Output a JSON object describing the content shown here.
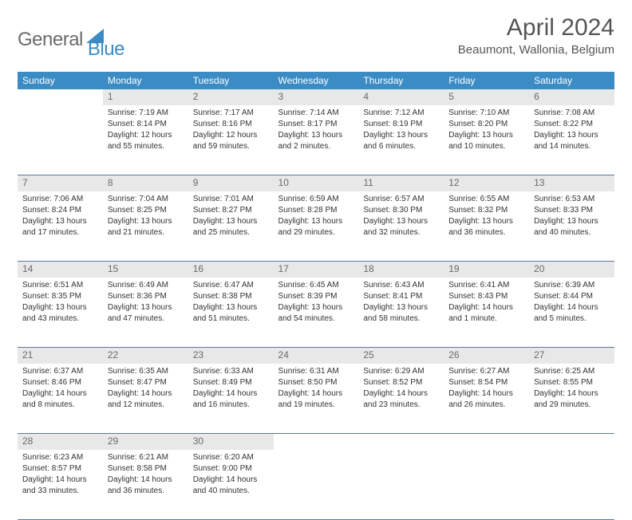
{
  "logo": {
    "text1": "General",
    "text2": "Blue"
  },
  "title": "April 2024",
  "location": "Beaumont, Wallonia, Belgium",
  "header_bg": "#3b8bc4",
  "daynum_bg": "#e8e8e8",
  "border_color": "#5a7a9a",
  "weekdays": [
    "Sunday",
    "Monday",
    "Tuesday",
    "Wednesday",
    "Thursday",
    "Friday",
    "Saturday"
  ],
  "weeks": [
    [
      null,
      {
        "day": "1",
        "sunrise": "Sunrise: 7:19 AM",
        "sunset": "Sunset: 8:14 PM",
        "daylight1": "Daylight: 12 hours",
        "daylight2": "and 55 minutes."
      },
      {
        "day": "2",
        "sunrise": "Sunrise: 7:17 AM",
        "sunset": "Sunset: 8:16 PM",
        "daylight1": "Daylight: 12 hours",
        "daylight2": "and 59 minutes."
      },
      {
        "day": "3",
        "sunrise": "Sunrise: 7:14 AM",
        "sunset": "Sunset: 8:17 PM",
        "daylight1": "Daylight: 13 hours",
        "daylight2": "and 2 minutes."
      },
      {
        "day": "4",
        "sunrise": "Sunrise: 7:12 AM",
        "sunset": "Sunset: 8:19 PM",
        "daylight1": "Daylight: 13 hours",
        "daylight2": "and 6 minutes."
      },
      {
        "day": "5",
        "sunrise": "Sunrise: 7:10 AM",
        "sunset": "Sunset: 8:20 PM",
        "daylight1": "Daylight: 13 hours",
        "daylight2": "and 10 minutes."
      },
      {
        "day": "6",
        "sunrise": "Sunrise: 7:08 AM",
        "sunset": "Sunset: 8:22 PM",
        "daylight1": "Daylight: 13 hours",
        "daylight2": "and 14 minutes."
      }
    ],
    [
      {
        "day": "7",
        "sunrise": "Sunrise: 7:06 AM",
        "sunset": "Sunset: 8:24 PM",
        "daylight1": "Daylight: 13 hours",
        "daylight2": "and 17 minutes."
      },
      {
        "day": "8",
        "sunrise": "Sunrise: 7:04 AM",
        "sunset": "Sunset: 8:25 PM",
        "daylight1": "Daylight: 13 hours",
        "daylight2": "and 21 minutes."
      },
      {
        "day": "9",
        "sunrise": "Sunrise: 7:01 AM",
        "sunset": "Sunset: 8:27 PM",
        "daylight1": "Daylight: 13 hours",
        "daylight2": "and 25 minutes."
      },
      {
        "day": "10",
        "sunrise": "Sunrise: 6:59 AM",
        "sunset": "Sunset: 8:28 PM",
        "daylight1": "Daylight: 13 hours",
        "daylight2": "and 29 minutes."
      },
      {
        "day": "11",
        "sunrise": "Sunrise: 6:57 AM",
        "sunset": "Sunset: 8:30 PM",
        "daylight1": "Daylight: 13 hours",
        "daylight2": "and 32 minutes."
      },
      {
        "day": "12",
        "sunrise": "Sunrise: 6:55 AM",
        "sunset": "Sunset: 8:32 PM",
        "daylight1": "Daylight: 13 hours",
        "daylight2": "and 36 minutes."
      },
      {
        "day": "13",
        "sunrise": "Sunrise: 6:53 AM",
        "sunset": "Sunset: 8:33 PM",
        "daylight1": "Daylight: 13 hours",
        "daylight2": "and 40 minutes."
      }
    ],
    [
      {
        "day": "14",
        "sunrise": "Sunrise: 6:51 AM",
        "sunset": "Sunset: 8:35 PM",
        "daylight1": "Daylight: 13 hours",
        "daylight2": "and 43 minutes."
      },
      {
        "day": "15",
        "sunrise": "Sunrise: 6:49 AM",
        "sunset": "Sunset: 8:36 PM",
        "daylight1": "Daylight: 13 hours",
        "daylight2": "and 47 minutes."
      },
      {
        "day": "16",
        "sunrise": "Sunrise: 6:47 AM",
        "sunset": "Sunset: 8:38 PM",
        "daylight1": "Daylight: 13 hours",
        "daylight2": "and 51 minutes."
      },
      {
        "day": "17",
        "sunrise": "Sunrise: 6:45 AM",
        "sunset": "Sunset: 8:39 PM",
        "daylight1": "Daylight: 13 hours",
        "daylight2": "and 54 minutes."
      },
      {
        "day": "18",
        "sunrise": "Sunrise: 6:43 AM",
        "sunset": "Sunset: 8:41 PM",
        "daylight1": "Daylight: 13 hours",
        "daylight2": "and 58 minutes."
      },
      {
        "day": "19",
        "sunrise": "Sunrise: 6:41 AM",
        "sunset": "Sunset: 8:43 PM",
        "daylight1": "Daylight: 14 hours",
        "daylight2": "and 1 minute."
      },
      {
        "day": "20",
        "sunrise": "Sunrise: 6:39 AM",
        "sunset": "Sunset: 8:44 PM",
        "daylight1": "Daylight: 14 hours",
        "daylight2": "and 5 minutes."
      }
    ],
    [
      {
        "day": "21",
        "sunrise": "Sunrise: 6:37 AM",
        "sunset": "Sunset: 8:46 PM",
        "daylight1": "Daylight: 14 hours",
        "daylight2": "and 8 minutes."
      },
      {
        "day": "22",
        "sunrise": "Sunrise: 6:35 AM",
        "sunset": "Sunset: 8:47 PM",
        "daylight1": "Daylight: 14 hours",
        "daylight2": "and 12 minutes."
      },
      {
        "day": "23",
        "sunrise": "Sunrise: 6:33 AM",
        "sunset": "Sunset: 8:49 PM",
        "daylight1": "Daylight: 14 hours",
        "daylight2": "and 16 minutes."
      },
      {
        "day": "24",
        "sunrise": "Sunrise: 6:31 AM",
        "sunset": "Sunset: 8:50 PM",
        "daylight1": "Daylight: 14 hours",
        "daylight2": "and 19 minutes."
      },
      {
        "day": "25",
        "sunrise": "Sunrise: 6:29 AM",
        "sunset": "Sunset: 8:52 PM",
        "daylight1": "Daylight: 14 hours",
        "daylight2": "and 23 minutes."
      },
      {
        "day": "26",
        "sunrise": "Sunrise: 6:27 AM",
        "sunset": "Sunset: 8:54 PM",
        "daylight1": "Daylight: 14 hours",
        "daylight2": "and 26 minutes."
      },
      {
        "day": "27",
        "sunrise": "Sunrise: 6:25 AM",
        "sunset": "Sunset: 8:55 PM",
        "daylight1": "Daylight: 14 hours",
        "daylight2": "and 29 minutes."
      }
    ],
    [
      {
        "day": "28",
        "sunrise": "Sunrise: 6:23 AM",
        "sunset": "Sunset: 8:57 PM",
        "daylight1": "Daylight: 14 hours",
        "daylight2": "and 33 minutes."
      },
      {
        "day": "29",
        "sunrise": "Sunrise: 6:21 AM",
        "sunset": "Sunset: 8:58 PM",
        "daylight1": "Daylight: 14 hours",
        "daylight2": "and 36 minutes."
      },
      {
        "day": "30",
        "sunrise": "Sunrise: 6:20 AM",
        "sunset": "Sunset: 9:00 PM",
        "daylight1": "Daylight: 14 hours",
        "daylight2": "and 40 minutes."
      },
      null,
      null,
      null,
      null
    ]
  ]
}
